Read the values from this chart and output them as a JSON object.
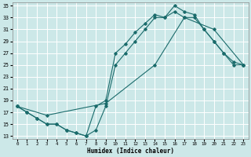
{
  "xlabel": "Humidex (Indice chaleur)",
  "bg_color": "#cce8e8",
  "line_color": "#1a6b6b",
  "xlim": [
    -0.5,
    23.5
  ],
  "ylim": [
    12.5,
    35.5
  ],
  "yticks": [
    13,
    15,
    17,
    19,
    21,
    23,
    25,
    27,
    29,
    31,
    33,
    35
  ],
  "xticks": [
    0,
    1,
    2,
    3,
    4,
    5,
    6,
    7,
    8,
    9,
    10,
    11,
    12,
    13,
    14,
    15,
    16,
    17,
    18,
    19,
    20,
    21,
    22,
    23
  ],
  "line1_x": [
    0,
    1,
    2,
    3,
    4,
    5,
    6,
    7,
    8,
    9,
    10,
    11,
    12,
    13,
    14,
    15,
    16,
    17,
    18,
    19,
    20,
    21,
    22,
    23
  ],
  "line1_y": [
    18,
    17,
    16,
    15,
    15,
    14,
    13.5,
    13,
    18,
    19,
    27,
    28.5,
    30.5,
    32,
    33.5,
    33,
    35,
    34,
    33.5,
    31,
    29,
    27,
    25.5,
    25
  ],
  "line2_x": [
    0,
    1,
    2,
    3,
    4,
    5,
    6,
    7,
    8,
    9,
    10,
    11,
    12,
    13,
    14,
    15,
    16,
    17,
    18,
    19,
    20,
    21,
    22,
    23
  ],
  "line2_y": [
    18,
    17,
    16,
    15,
    15,
    14,
    13.5,
    13,
    14,
    18,
    25,
    27,
    29,
    31,
    33,
    33,
    34,
    33,
    33,
    31,
    29,
    27,
    25,
    25
  ],
  "line3_x": [
    0,
    3,
    9,
    14,
    17,
    20,
    23
  ],
  "line3_y": [
    18,
    16.5,
    18.5,
    25,
    33,
    31,
    25
  ]
}
